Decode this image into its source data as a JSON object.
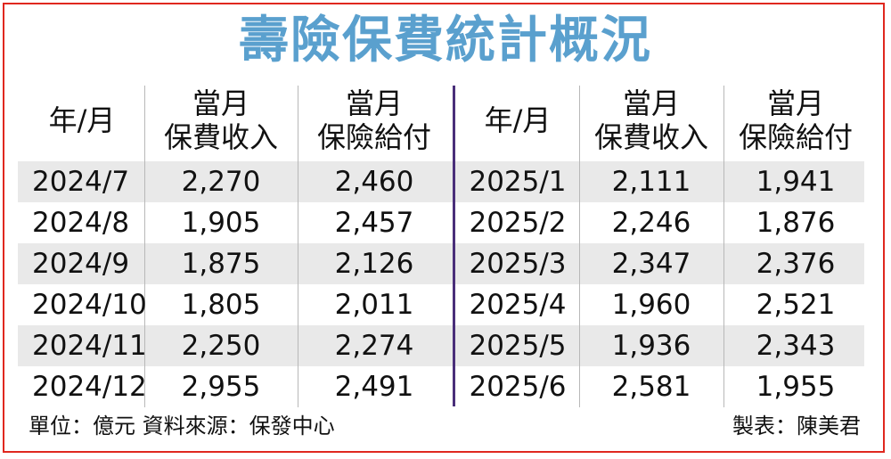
{
  "title": "壽險保費統計概況",
  "chart_data": {
    "type": "table",
    "title": "壽險保費統計概況",
    "columns": [
      "年/月",
      "當月 保費收入",
      "當月 保險給付"
    ],
    "header": {
      "period": "年/月",
      "income_line1": "當月",
      "income_line2": "保費收入",
      "payout_line1": "當月",
      "payout_line2": "保險給付"
    },
    "rows_left": [
      {
        "period": "2024/7",
        "income": "2,270",
        "payout": "2,460"
      },
      {
        "period": "2024/8",
        "income": "1,905",
        "payout": "2,457"
      },
      {
        "period": "2024/9",
        "income": "1,875",
        "payout": "2,126"
      },
      {
        "period": "2024/10",
        "income": "1,805",
        "payout": "2,011"
      },
      {
        "period": "2024/11",
        "income": "2,250",
        "payout": "2,274"
      },
      {
        "period": "2024/12",
        "income": "2,955",
        "payout": "2,491"
      }
    ],
    "rows_right": [
      {
        "period": "2025/1",
        "income": "2,111",
        "payout": "1,941"
      },
      {
        "period": "2025/2",
        "income": "2,246",
        "payout": "1,876"
      },
      {
        "period": "2025/3",
        "income": "2,347",
        "payout": "2,376"
      },
      {
        "period": "2025/4",
        "income": "1,960",
        "payout": "2,521"
      },
      {
        "period": "2025/5",
        "income": "1,936",
        "payout": "2,343"
      },
      {
        "period": "2025/6",
        "income": "2,581",
        "payout": "1,955"
      }
    ]
  },
  "footer": {
    "source": "單位：億元  資料來源：保發中心",
    "credit": "製表：陳美君"
  },
  "colors": {
    "title": "#5aa0ce",
    "frame": "#e0281f",
    "band": "#e9e9e9",
    "divider": "#4a2f7a"
  }
}
